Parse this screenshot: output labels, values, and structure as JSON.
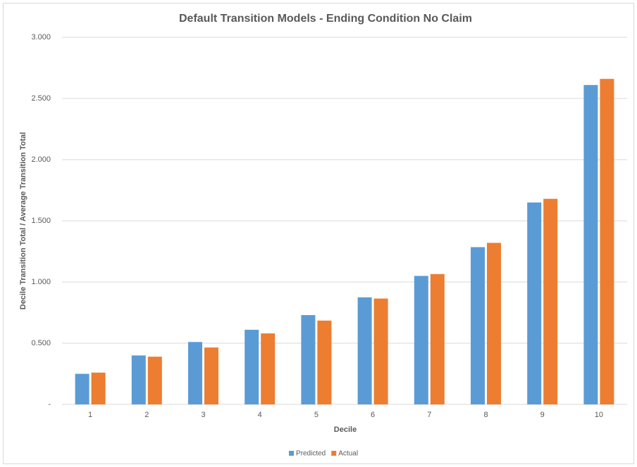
{
  "chart_data": {
    "type": "bar",
    "title": "Default Transition Models - Ending Condition No Claim",
    "x_label": "Decile",
    "y_label": "Decile Transition Total / Average Transition Total",
    "categories": [
      "1",
      "2",
      "3",
      "4",
      "5",
      "6",
      "7",
      "8",
      "9",
      "10"
    ],
    "series": [
      {
        "name": "Predicted",
        "color": "#5b9bd5",
        "values": [
          0.25,
          0.4,
          0.51,
          0.61,
          0.73,
          0.875,
          1.05,
          1.285,
          1.65,
          2.61
        ]
      },
      {
        "name": "Actual",
        "color": "#ed7d31",
        "values": [
          0.26,
          0.39,
          0.465,
          0.58,
          0.685,
          0.865,
          1.065,
          1.32,
          1.68,
          2.66
        ]
      }
    ],
    "ylim": [
      0,
      3
    ],
    "yticks": [
      {
        "value": 0,
        "label": "-"
      },
      {
        "value": 0.5,
        "label": "0.500"
      },
      {
        "value": 1,
        "label": "1.000"
      },
      {
        "value": 1.5,
        "label": "1.500"
      },
      {
        "value": 2,
        "label": "2.000"
      },
      {
        "value": 2.5,
        "label": "2.500"
      },
      {
        "value": 3,
        "label": "3.000"
      }
    ],
    "grid": true,
    "legend": "bottom"
  }
}
